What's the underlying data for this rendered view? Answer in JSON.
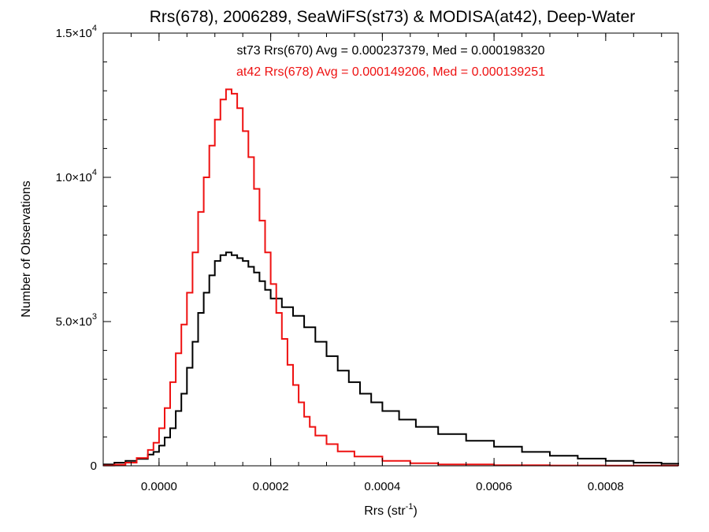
{
  "chart_data": {
    "type": "line",
    "title": "Rrs(678), 2006289, SeaWiFS(st73) & MODISA(at42), Deep-Water",
    "xlabel": "Rrs (str",
    "xlabel_sup": "-1",
    "xlabel_close": ")",
    "ylabel": "Number of Observations",
    "xlim": [
      -0.0001,
      0.00093
    ],
    "ylim": [
      0,
      15000
    ],
    "grid": false,
    "x_tick_values": [
      0.0,
      0.0002,
      0.0004,
      0.0006,
      0.0008
    ],
    "x_tick_labels": [
      "0.0000",
      "0.0002",
      "0.0004",
      "0.0006",
      "0.0008"
    ],
    "y_ticks": [
      {
        "value": 0,
        "mantissa": "0",
        "exponent": ""
      },
      {
        "value": 5000,
        "mantissa": "5.0×10",
        "exponent": "3"
      },
      {
        "value": 10000,
        "mantissa": "1.0×10",
        "exponent": "4"
      },
      {
        "value": 15000,
        "mantissa": "1.5×10",
        "exponent": "4"
      }
    ],
    "annotations": [
      {
        "text": "st73 Rrs(670) Avg = 0.000237379, Med = 0.000198320",
        "color": "#000000"
      },
      {
        "text": "at42 Rrs(678) Avg = 0.000149206, Med = 0.000139251",
        "color": "#ee1111"
      }
    ],
    "series": [
      {
        "color": "#000000",
        "points": [
          [
            -0.0001,
            50
          ],
          [
            -8e-05,
            110
          ],
          [
            -6e-05,
            170
          ],
          [
            -4e-05,
            240
          ],
          [
            -2e-05,
            390
          ],
          [
            -1e-05,
            480
          ],
          [
            0.0,
            700
          ],
          [
            1e-05,
            980
          ],
          [
            2e-05,
            1300
          ],
          [
            3e-05,
            1900
          ],
          [
            4e-05,
            2500
          ],
          [
            5e-05,
            3400
          ],
          [
            6e-05,
            4300
          ],
          [
            7e-05,
            5300
          ],
          [
            8e-05,
            6000
          ],
          [
            9e-05,
            6600
          ],
          [
            0.0001,
            7100
          ],
          [
            0.00011,
            7300
          ],
          [
            0.00012,
            7400
          ],
          [
            0.00013,
            7300
          ],
          [
            0.00014,
            7200
          ],
          [
            0.00015,
            7100
          ],
          [
            0.00016,
            6900
          ],
          [
            0.00017,
            6700
          ],
          [
            0.00018,
            6400
          ],
          [
            0.00019,
            6100
          ],
          [
            0.0002,
            5800
          ],
          [
            0.00022,
            5500
          ],
          [
            0.00024,
            5200
          ],
          [
            0.00026,
            4800
          ],
          [
            0.00028,
            4300
          ],
          [
            0.0003,
            3800
          ],
          [
            0.00032,
            3300
          ],
          [
            0.00034,
            2900
          ],
          [
            0.00036,
            2500
          ],
          [
            0.00038,
            2200
          ],
          [
            0.0004,
            1900
          ],
          [
            0.00043,
            1600
          ],
          [
            0.00046,
            1350
          ],
          [
            0.0005,
            1100
          ],
          [
            0.00055,
            870
          ],
          [
            0.0006,
            660
          ],
          [
            0.00065,
            480
          ],
          [
            0.0007,
            350
          ],
          [
            0.00075,
            250
          ],
          [
            0.0008,
            170
          ],
          [
            0.00085,
            110
          ],
          [
            0.0009,
            70
          ],
          [
            0.00093,
            50
          ]
        ]
      },
      {
        "color": "#ee1111",
        "points": [
          [
            -0.0001,
            10
          ],
          [
            -8e-05,
            40
          ],
          [
            -6e-05,
            110
          ],
          [
            -4e-05,
            270
          ],
          [
            -2e-05,
            550
          ],
          [
            -1e-05,
            800
          ],
          [
            0.0,
            1300
          ],
          [
            1e-05,
            2000
          ],
          [
            2e-05,
            2900
          ],
          [
            3e-05,
            3900
          ],
          [
            4e-05,
            4900
          ],
          [
            5e-05,
            6000
          ],
          [
            6e-05,
            7400
          ],
          [
            7e-05,
            8800
          ],
          [
            8e-05,
            10000
          ],
          [
            9e-05,
            11100
          ],
          [
            0.0001,
            12000
          ],
          [
            0.00011,
            12700
          ],
          [
            0.00012,
            13050
          ],
          [
            0.00013,
            12900
          ],
          [
            0.00014,
            12400
          ],
          [
            0.00015,
            11600
          ],
          [
            0.00016,
            10700
          ],
          [
            0.00017,
            9600
          ],
          [
            0.00018,
            8500
          ],
          [
            0.00019,
            7400
          ],
          [
            0.0002,
            6300
          ],
          [
            0.00021,
            5300
          ],
          [
            0.00022,
            4400
          ],
          [
            0.00023,
            3500
          ],
          [
            0.00024,
            2800
          ],
          [
            0.00025,
            2200
          ],
          [
            0.00026,
            1700
          ],
          [
            0.00027,
            1350
          ],
          [
            0.00028,
            1050
          ],
          [
            0.0003,
            750
          ],
          [
            0.00032,
            500
          ],
          [
            0.00035,
            320
          ],
          [
            0.0004,
            170
          ],
          [
            0.00045,
            90
          ],
          [
            0.0005,
            50
          ],
          [
            0.0006,
            20
          ],
          [
            0.0007,
            10
          ],
          [
            0.0008,
            5
          ],
          [
            0.00093,
            0
          ]
        ]
      }
    ]
  }
}
